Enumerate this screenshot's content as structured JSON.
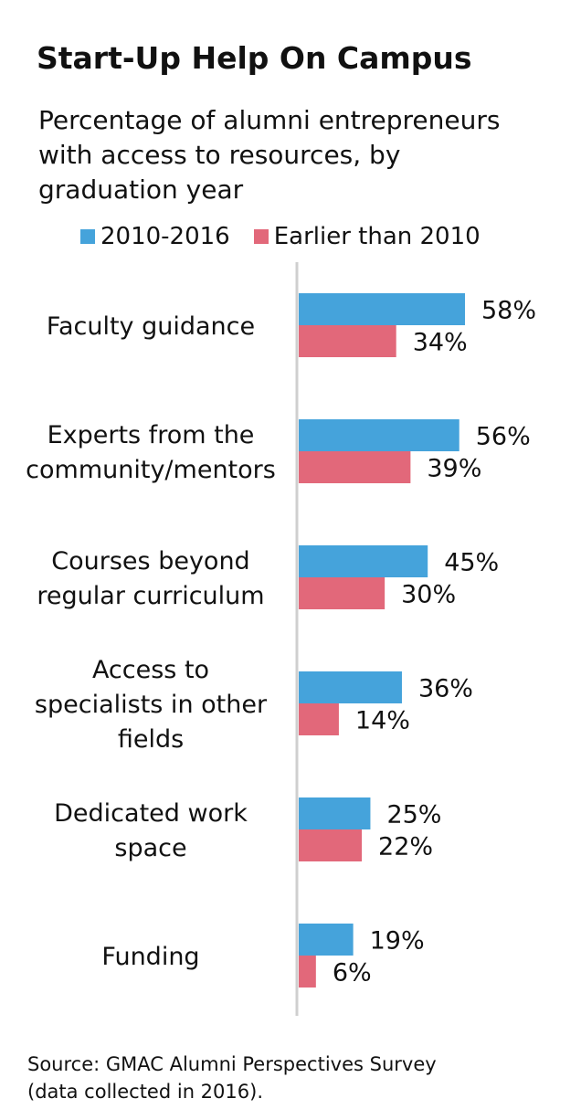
{
  "chart_data": {
    "type": "bar",
    "orientation": "horizontal",
    "title": "Start-Up Help On Campus",
    "subtitle": "Percentage of alumni entrepreneurs\nwith access to resources, by\ngraduation year",
    "categories": [
      "Faculty guidance",
      "Experts from the\ncommunity/mentors",
      "Courses beyond\nregular curriculum",
      "Access to\nspecialists in other\nfields",
      "Dedicated work\nspace",
      "Funding"
    ],
    "series": [
      {
        "name": "2010-2016",
        "color": "#45a3db",
        "values": [
          58,
          56,
          45,
          36,
          25,
          19
        ]
      },
      {
        "name": "Earlier than 2010",
        "color": "#e2687a",
        "values": [
          34,
          39,
          30,
          14,
          22,
          6
        ]
      }
    ],
    "value_suffix": "%",
    "legend_position": "top",
    "xlim": [
      0,
      58
    ],
    "grid": false,
    "axis_color": "#cfcfcf",
    "source": "Source: GMAC Alumni Perspectives Survey\n(data collected in 2016)."
  }
}
